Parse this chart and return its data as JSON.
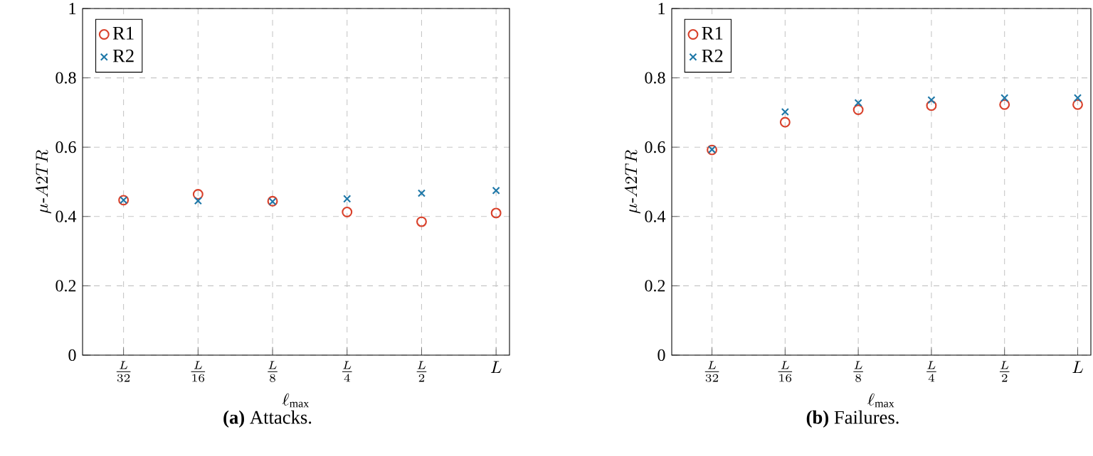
{
  "chart_data": [
    {
      "type": "scatter",
      "title": "**(a)** Attacks.",
      "xlabel": "\\ell_{\\max}",
      "ylabel": "\\mu\\text{-}A2TR",
      "categories": [
        "\\frac{L}{32}",
        "\\frac{L}{16}",
        "\\frac{L}{8}",
        "\\frac{L}{4}",
        "\\frac{L}{2}",
        "L"
      ],
      "ylim": [
        0,
        1
      ],
      "yticks": [
        0,
        0.2,
        0.4,
        0.6,
        0.8,
        1
      ],
      "grid": true,
      "legend": "top left",
      "series": [
        {
          "name": "R1",
          "color": "#d9412b",
          "marker": "circle",
          "values": [
            0.447,
            0.464,
            0.444,
            0.413,
            0.385,
            0.41
          ]
        },
        {
          "name": "R2",
          "color": "#1f78a8",
          "marker": "cross",
          "values": [
            0.447,
            0.445,
            0.443,
            0.451,
            0.467,
            0.475
          ]
        }
      ]
    },
    {
      "type": "scatter",
      "title": "**(b)** Failures.",
      "xlabel": "\\ell_{\\max}",
      "ylabel": "\\mu\\text{-}A2TR",
      "categories": [
        "\\frac{L}{32}",
        "\\frac{L}{16}",
        "\\frac{L}{8}",
        "\\frac{L}{4}",
        "\\frac{L}{2}",
        "L"
      ],
      "ylim": [
        0,
        1
      ],
      "yticks": [
        0,
        0.2,
        0.4,
        0.6,
        0.8,
        1
      ],
      "grid": true,
      "legend": "top left",
      "series": [
        {
          "name": "R1",
          "color": "#d9412b",
          "marker": "circle",
          "values": [
            0.592,
            0.672,
            0.708,
            0.72,
            0.723,
            0.723
          ]
        },
        {
          "name": "R2",
          "color": "#1f78a8",
          "marker": "cross",
          "values": [
            0.593,
            0.702,
            0.728,
            0.736,
            0.742,
            0.742
          ]
        }
      ]
    }
  ]
}
